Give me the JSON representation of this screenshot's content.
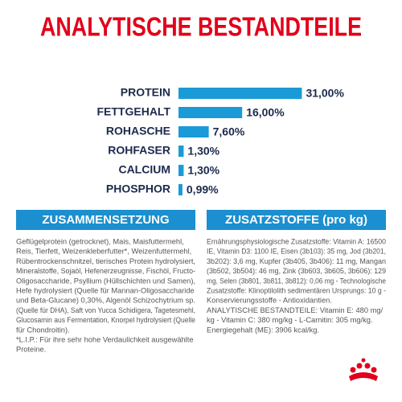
{
  "chart_data": {
    "type": "bar",
    "orientation": "horizontal",
    "title": "ANALYTISCHE BESTANDTEILE",
    "categories": [
      "PROTEIN",
      "FETTGEHALT",
      "ROHASCHE",
      "ROHFASER",
      "CALCIUM",
      "PHOSPHOR"
    ],
    "values": [
      31,
      16,
      7.6,
      1.3,
      1.3,
      0.99
    ],
    "value_labels": [
      "31,00%",
      "16,00%",
      "7,60%",
      "1,30%",
      "1,30%",
      "0,99%"
    ],
    "color": "#1a9ad6"
  },
  "sections": [
    {
      "title": "ZUSAMMENSETZUNG",
      "lines": [
        "Geflügelprotein (getrocknet), Mais, Maisfuttermehl,",
        "Reis, Tierfett, Weizenkleberfutter*, Weizenfuttermehl,",
        "Rübentrockenschnitzel, tierisches Protein hydrolysiert,",
        "Mineralstoffe, Sojaöl, Hefenerzeugnisse, Fischöl, Fructo-",
        "Oligosaccharide, Psyllium (Hüllschichten und Samen),",
        "Hefe hydrolysiert (Quelle für Mannan-Oligosaccharide",
        "und Beta-Glucane) 0,30%, Algenöl Schizochytrium sp.",
        "(Quelle für DHA), Saft von Yucca Schidigera, Tagetesmehl,",
        "Glucosamin aus Fermentation, Knorpel hydrolysiert (Quelle",
        "für Chondroitin).",
        "*L.I.P.: Für ihre sehr hohe Verdaulichkeit ausgewählte",
        "Proteine."
      ]
    },
    {
      "title": "ZUSATZSTOFFE (pro kg)",
      "lines": [
        "Ernährungsphysiologische Zusatzstoffe: Vitamin A: 16500",
        "IE, Vitamin D3: 1100 IE, Eisen (3b103): 35 mg, Jod (3b201,",
        "3b202): 3,6 mg, Kupfer (3b405, 3b406): 11 mg, Mangan",
        "(3b502, 3b504): 46 mg, Zink (3b603, 3b605, 3b606): 129",
        "mg, Selen (3b801, 3b811, 3b812): 0,06 mg - Technologische",
        "Zusatzstoffe: Klinoptilolith sedimentären Ursprungs: 10 g -",
        "Konservierungsstoffe - Antioxidantien.",
        "ANALYTISCHE BESTANDTEILE: Vitamin E: 480 mg/",
        "kg - Vitamin C: 380 mg/kg - L-Carnitin: 305 mg/kg.",
        "Energiegehalt (ME): 3906 kcal/kg."
      ]
    }
  ]
}
